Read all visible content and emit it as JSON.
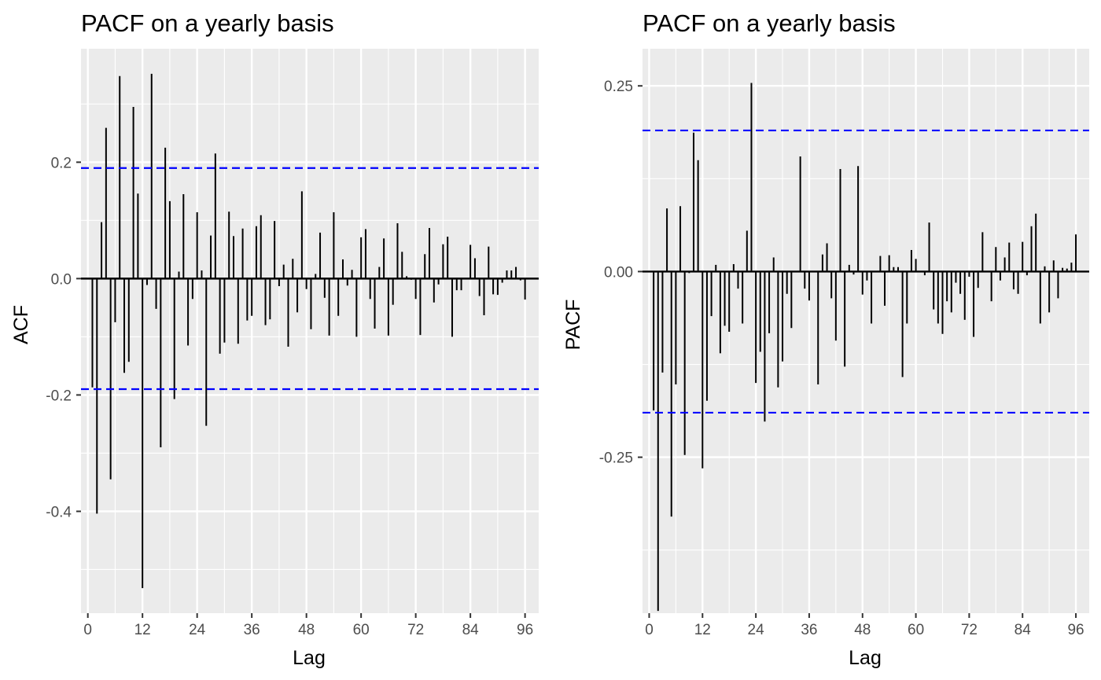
{
  "chart_data": [
    {
      "type": "bar",
      "title": "PACF on a yearly basis",
      "xlabel": "Lag",
      "ylabel": "ACF",
      "xlim": [
        -1.5,
        99
      ],
      "ylim": [
        -0.575,
        0.395
      ],
      "x_ticks": [
        0,
        12,
        24,
        36,
        48,
        60,
        72,
        84,
        96
      ],
      "y_ticks": [
        -0.4,
        -0.2,
        0.0,
        0.2
      ],
      "y_tick_labels": [
        "-0.4",
        "-0.2",
        "0.0",
        "0.2"
      ],
      "grid": true,
      "confidence_bounds": [
        0.19,
        -0.19
      ],
      "x": [
        1,
        2,
        3,
        4,
        5,
        6,
        7,
        8,
        9,
        10,
        11,
        12,
        13,
        14,
        15,
        16,
        17,
        18,
        19,
        20,
        21,
        22,
        23,
        24,
        25,
        26,
        27,
        28,
        29,
        30,
        31,
        32,
        33,
        34,
        35,
        36,
        37,
        38,
        39,
        40,
        41,
        42,
        43,
        44,
        45,
        46,
        47,
        48,
        49,
        50,
        51,
        52,
        53,
        54,
        55,
        56,
        57,
        58,
        59,
        60,
        61,
        62,
        63,
        64,
        65,
        66,
        67,
        68,
        69,
        70,
        71,
        72,
        73,
        74,
        75,
        76,
        77,
        78,
        79,
        80,
        81,
        82,
        83,
        84,
        85,
        86,
        87,
        88,
        89,
        90,
        91,
        92,
        93,
        94,
        95,
        96
      ],
      "values": [
        -0.187,
        -0.404,
        0.097,
        0.259,
        -0.345,
        -0.075,
        0.348,
        -0.162,
        -0.143,
        0.295,
        0.146,
        -0.532,
        -0.011,
        0.352,
        -0.052,
        -0.29,
        0.225,
        0.133,
        -0.207,
        0.012,
        0.145,
        -0.115,
        -0.035,
        0.114,
        0.014,
        -0.253,
        0.074,
        0.215,
        -0.129,
        -0.11,
        0.115,
        0.073,
        -0.112,
        0.086,
        -0.072,
        -0.064,
        0.09,
        0.109,
        -0.08,
        -0.07,
        0.099,
        -0.013,
        0.024,
        -0.117,
        0.034,
        -0.058,
        0.15,
        -0.018,
        -0.087,
        0.008,
        0.079,
        -0.033,
        -0.098,
        0.114,
        -0.064,
        0.033,
        -0.012,
        0.015,
        -0.1,
        0.071,
        0.085,
        -0.035,
        -0.086,
        0.02,
        0.069,
        -0.098,
        -0.045,
        0.095,
        0.046,
        0.004,
        -0.002,
        -0.035,
        -0.097,
        0.042,
        0.087,
        -0.041,
        -0.01,
        0.059,
        0.072,
        -0.1,
        -0.02,
        -0.02,
        0.0,
        0.058,
        0.035,
        -0.03,
        -0.063,
        0.055,
        -0.027,
        -0.028,
        -0.007,
        0.014,
        0.014,
        0.02,
        -0.003,
        -0.036
      ]
    },
    {
      "type": "bar",
      "title": "PACF on a yearly basis",
      "xlabel": "Lag",
      "ylabel": "PACF",
      "xlim": [
        -1.5,
        99
      ],
      "ylim": [
        -0.46,
        0.3
      ],
      "x_ticks": [
        0,
        12,
        24,
        36,
        48,
        60,
        72,
        84,
        96
      ],
      "y_ticks": [
        -0.25,
        0.0,
        0.25
      ],
      "y_tick_labels": [
        "-0.25",
        "0.00",
        "0.25"
      ],
      "grid": true,
      "confidence_bounds": [
        0.19,
        -0.19
      ],
      "x": [
        1,
        2,
        3,
        4,
        5,
        6,
        7,
        8,
        9,
        10,
        11,
        12,
        13,
        14,
        15,
        16,
        17,
        18,
        19,
        20,
        21,
        22,
        23,
        24,
        25,
        26,
        27,
        28,
        29,
        30,
        31,
        32,
        33,
        34,
        35,
        36,
        37,
        38,
        39,
        40,
        41,
        42,
        43,
        44,
        45,
        46,
        47,
        48,
        49,
        50,
        51,
        52,
        53,
        54,
        55,
        56,
        57,
        58,
        59,
        60,
        61,
        62,
        63,
        64,
        65,
        66,
        67,
        68,
        69,
        70,
        71,
        72,
        73,
        74,
        75,
        76,
        77,
        78,
        79,
        80,
        81,
        82,
        83,
        84,
        85,
        86,
        87,
        88,
        89,
        90,
        91,
        92,
        93,
        94,
        95,
        96
      ],
      "values": [
        -0.187,
        -0.457,
        -0.136,
        0.085,
        -0.33,
        -0.152,
        0.088,
        -0.247,
        -0.002,
        0.187,
        0.15,
        -0.265,
        -0.174,
        -0.06,
        0.009,
        -0.11,
        -0.073,
        -0.081,
        0.01,
        -0.023,
        -0.07,
        0.055,
        0.254,
        -0.15,
        -0.108,
        -0.202,
        -0.083,
        0.019,
        -0.156,
        -0.121,
        -0.03,
        -0.076,
        0.0,
        0.155,
        -0.023,
        -0.039,
        0.0,
        -0.152,
        0.023,
        0.038,
        -0.036,
        -0.093,
        0.138,
        -0.128,
        0.009,
        -0.004,
        0.142,
        -0.031,
        -0.012,
        -0.07,
        0.0,
        0.021,
        -0.046,
        0.022,
        0.006,
        0.006,
        -0.142,
        -0.07,
        0.029,
        0.017,
        0.0,
        -0.005,
        0.066,
        -0.051,
        -0.07,
        -0.084,
        -0.04,
        -0.055,
        -0.015,
        -0.03,
        -0.065,
        -0.007,
        -0.088,
        -0.022,
        0.053,
        0.0,
        -0.04,
        0.033,
        -0.012,
        0.019,
        0.039,
        -0.024,
        -0.03,
        0.04,
        -0.005,
        0.061,
        0.078,
        -0.07,
        0.007,
        -0.055,
        0.015,
        -0.036,
        0.005,
        0.004,
        0.012,
        0.05
      ]
    }
  ]
}
